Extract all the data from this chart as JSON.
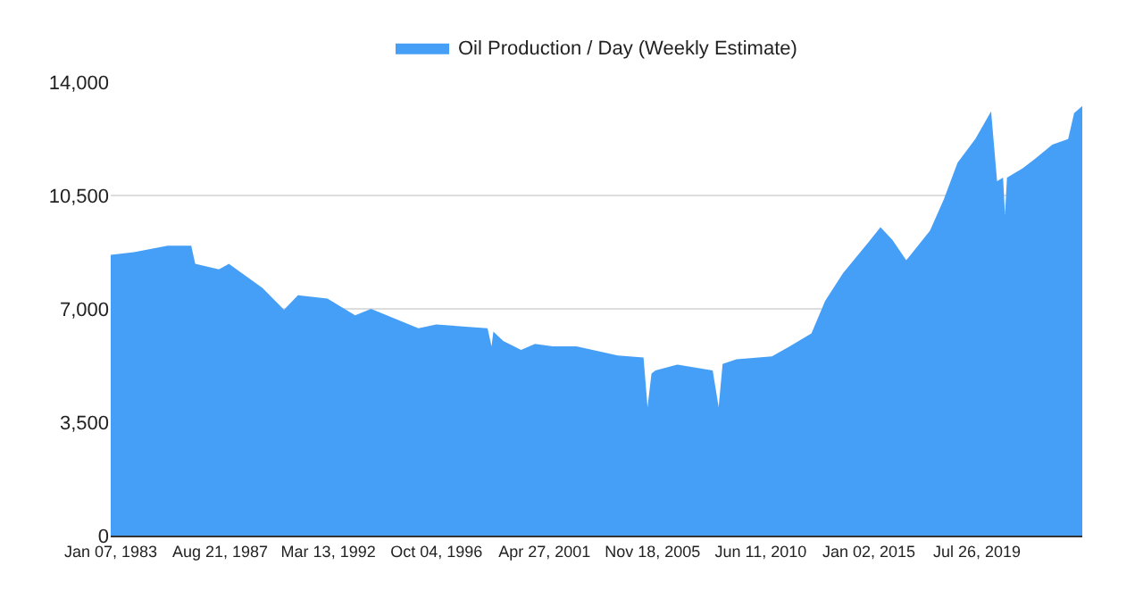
{
  "chart_data": {
    "type": "area",
    "x": [
      "1983-01-07",
      "1984-01",
      "1985-06",
      "1986-06",
      "1986-08",
      "1987-08",
      "1988-01",
      "1989-06",
      "1990-05",
      "1990-12",
      "1992-03",
      "1993-05",
      "1994-01",
      "1996-01",
      "1996-10",
      "1998-12",
      "1999-02",
      "1999-03",
      "1999-08",
      "2000-05",
      "2000-12",
      "2001-09",
      "2002-09",
      "2004-06",
      "2005-07",
      "2005-09",
      "2005-11",
      "2006-01",
      "2006-12",
      "2008-06",
      "2008-09",
      "2008-11",
      "2009-06",
      "2010-12",
      "2011-09",
      "2012-08",
      "2013-03",
      "2013-12",
      "2015-01",
      "2015-07",
      "2016-01",
      "2016-08",
      "2017-08",
      "2018-03",
      "2018-10",
      "2019-07",
      "2020-03",
      "2020-06",
      "2020-09",
      "2020-10",
      "2020-11",
      "2021-07",
      "2022-01",
      "2022-10",
      "2023-06",
      "2023-09",
      "2024-01-05"
    ],
    "series": [
      {
        "name": "Oil Production / Day (Weekly Estimate)",
        "color": "#469ff6",
        "values": [
          8670,
          8750,
          8950,
          8950,
          8390,
          8220,
          8390,
          7650,
          6970,
          7420,
          7320,
          6800,
          7000,
          6400,
          6520,
          6400,
          5840,
          6300,
          6010,
          5730,
          5920,
          5840,
          5840,
          5560,
          5500,
          3970,
          5000,
          5100,
          5280,
          5100,
          3970,
          5300,
          5440,
          5530,
          5840,
          6240,
          7250,
          8100,
          9070,
          9520,
          9130,
          8500,
          9410,
          10370,
          11510,
          12240,
          13100,
          10940,
          11050,
          9920,
          11050,
          11340,
          11620,
          12070,
          12240,
          13040,
          13260
        ]
      }
    ],
    "xlim": [
      "1983-01-07",
      "2024-01-05"
    ],
    "xticks": [
      {
        "value": "1983-01-07",
        "label": "Jan 07, 1983"
      },
      {
        "value": "1987-08-21",
        "label": "Aug 21, 1987"
      },
      {
        "value": "1992-03-13",
        "label": "Mar 13, 1992"
      },
      {
        "value": "1996-10-04",
        "label": "Oct 04, 1996"
      },
      {
        "value": "2001-04-27",
        "label": "Apr 27, 2001"
      },
      {
        "value": "2005-11-18",
        "label": "Nov 18, 2005"
      },
      {
        "value": "2010-06-11",
        "label": "Jun 11, 2010"
      },
      {
        "value": "2015-01-02",
        "label": "Jan 02, 2015"
      },
      {
        "value": "2019-07-26",
        "label": "Jul 26, 2019"
      }
    ],
    "ylim": [
      0,
      14000
    ],
    "yticks": [
      {
        "value": 0,
        "label": "0"
      },
      {
        "value": 3500,
        "label": "3,500"
      },
      {
        "value": 7000,
        "label": "7,000"
      },
      {
        "value": 10500,
        "label": "10,500"
      },
      {
        "value": 14000,
        "label": "14,000"
      }
    ],
    "grid": "y",
    "legend": "top"
  }
}
